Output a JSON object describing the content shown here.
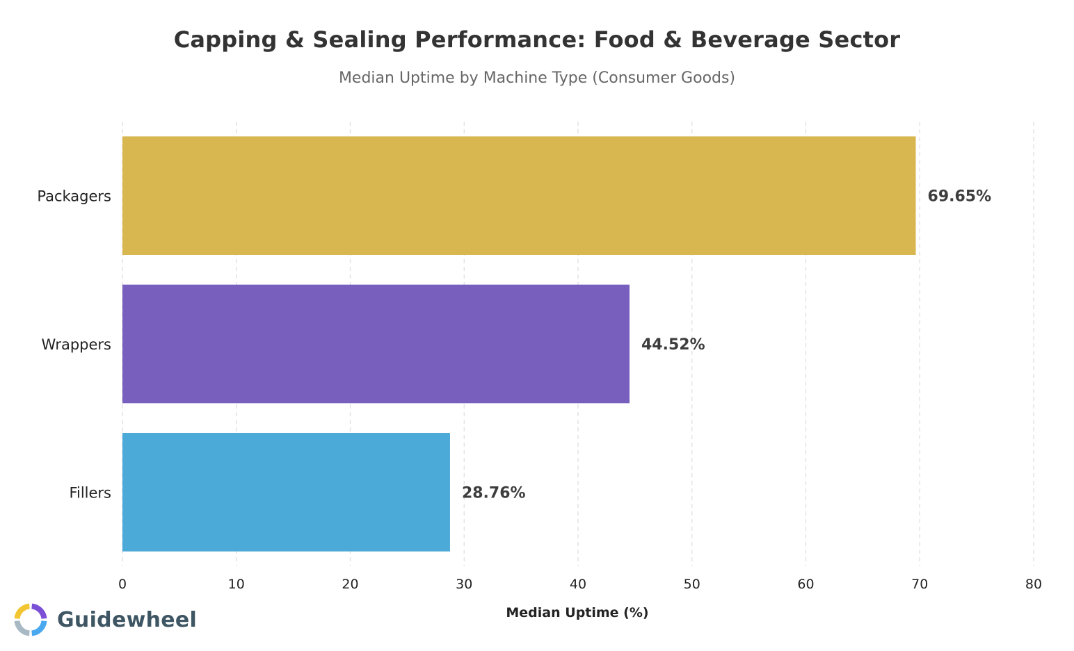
{
  "brand": {
    "name": "Guidewheel",
    "logo_icon": "guidewheel-ring-logo",
    "logo_colors": [
      "#f2c531",
      "#7b4fd6",
      "#4aa8f0",
      "#a9b9c4"
    ]
  },
  "chart_data": {
    "type": "bar",
    "orientation": "horizontal",
    "title": "Capping & Sealing Performance: Food & Beverage Sector",
    "subtitle": "Median Uptime by Machine Type (Consumer Goods)",
    "xlabel": "Median Uptime (%)",
    "ylabel": "",
    "categories": [
      "Packagers",
      "Wrappers",
      "Fillers"
    ],
    "values": [
      69.65,
      44.52,
      28.76
    ],
    "value_labels": [
      "69.65%",
      "44.52%",
      "28.76%"
    ],
    "colors": [
      "#d9b750",
      "#785fbe",
      "#4caad9"
    ],
    "xlim": [
      0,
      80
    ],
    "xticks": [
      0,
      10,
      20,
      30,
      40,
      50,
      60,
      70,
      80
    ],
    "grid": "vertical dashed",
    "legend": "none"
  }
}
